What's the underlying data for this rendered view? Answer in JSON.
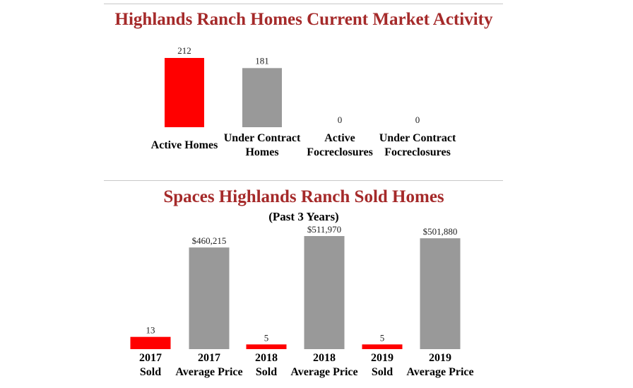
{
  "colors": {
    "title": "#a52a2a",
    "red": "#ff0000",
    "gray": "#999999"
  },
  "section1": {
    "title": "Highlands Ranch Homes Current Market Activity"
  },
  "section2": {
    "title": "Spaces Highlands Ranch Sold Homes",
    "subtitle": "(Past 3 Years)"
  },
  "chart_data": [
    {
      "type": "bar",
      "title": "Highlands Ranch Homes Current Market Activity",
      "categories": [
        [
          "Active Homes"
        ],
        [
          "Under Contract",
          "Homes"
        ],
        [
          "Active",
          "Focreclosures"
        ],
        [
          "Under Contract",
          "Focreclosures"
        ]
      ],
      "values": [
        212,
        181,
        0,
        0
      ],
      "value_labels": [
        "212",
        "181",
        "0",
        "0"
      ],
      "colors": [
        "#ff0000",
        "#999999",
        "#999999",
        "#999999"
      ],
      "ylim": [
        0,
        212
      ]
    },
    {
      "type": "bar",
      "title": "Spaces Highlands Ranch Sold Homes",
      "subtitle": "(Past 3 Years)",
      "categories": [
        [
          "2017",
          "Sold"
        ],
        [
          "2017",
          "Average Price"
        ],
        [
          "2018",
          "Sold"
        ],
        [
          "2018",
          "Average Price"
        ],
        [
          "2019",
          "Sold"
        ],
        [
          "2019",
          "Average Price"
        ]
      ],
      "values": [
        13,
        460215,
        5,
        511970,
        5,
        501880
      ],
      "value_labels": [
        "13",
        "$460,215",
        "5",
        "$511,970",
        "5",
        "$501,880"
      ],
      "colors": [
        "#ff0000",
        "#999999",
        "#ff0000",
        "#999999",
        "#ff0000",
        "#999999"
      ],
      "value_groups": [
        "sold",
        "price",
        "sold",
        "price",
        "sold",
        "price"
      ],
      "group_max": {
        "sold": 120,
        "price": 511970
      }
    }
  ]
}
